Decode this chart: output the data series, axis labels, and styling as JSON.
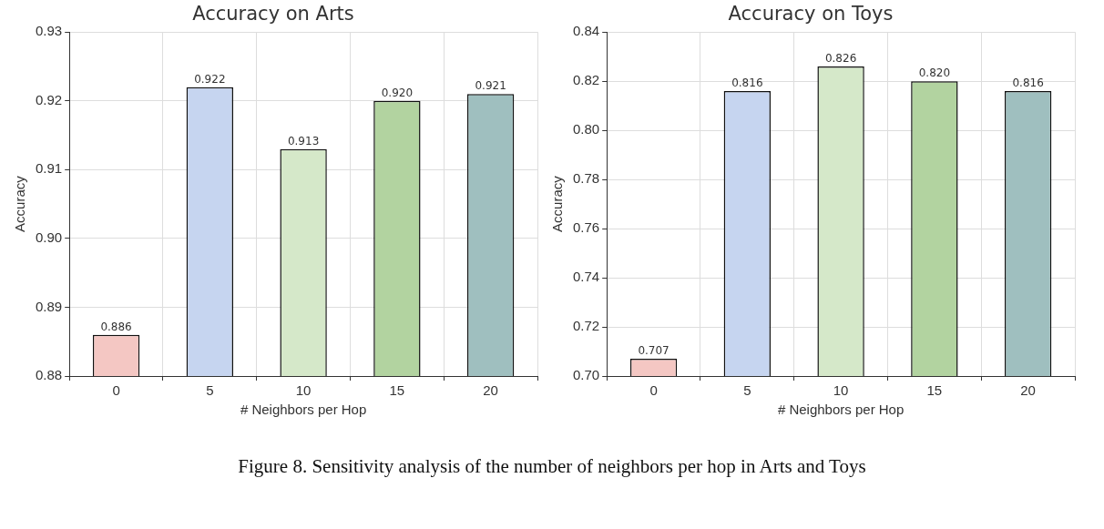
{
  "chart_data": [
    {
      "type": "bar",
      "title": "Accuracy on Arts",
      "xlabel": "# Neighbors per Hop",
      "ylabel": "Accuracy",
      "categories": [
        "0",
        "5",
        "10",
        "15",
        "20"
      ],
      "values": [
        0.886,
        0.922,
        0.913,
        0.92,
        0.921
      ],
      "colors": [
        "#f4c7c3",
        "#c6d5f0",
        "#d5e8c9",
        "#b2d3a0",
        "#9fbfbf"
      ],
      "ylim": [
        0.88,
        0.93
      ],
      "yticks": [
        {
          "value": 0.88,
          "label": "0.88"
        },
        {
          "value": 0.89,
          "label": "0.89"
        },
        {
          "value": 0.9,
          "label": "0.90"
        },
        {
          "value": 0.91,
          "label": "0.91"
        },
        {
          "value": 0.92,
          "label": "0.92"
        },
        {
          "value": 0.93,
          "label": "0.93"
        }
      ],
      "grid": true,
      "value_labels": [
        "0.886",
        "0.922",
        "0.913",
        "0.920",
        "0.921"
      ],
      "annotations": [
        "Figure 8. Sensitivity analysis of the number of neighbors per hop in Arts and Toys"
      ]
    },
    {
      "type": "bar",
      "title": "Accuracy on Toys",
      "xlabel": "# Neighbors per Hop",
      "ylabel": "Accuracy",
      "categories": [
        "0",
        "5",
        "10",
        "15",
        "20"
      ],
      "values": [
        0.707,
        0.816,
        0.826,
        0.82,
        0.816
      ],
      "colors": [
        "#f4c7c3",
        "#c6d5f0",
        "#d5e8c9",
        "#b2d3a0",
        "#9fbfbf"
      ],
      "ylim": [
        0.7,
        0.84
      ],
      "yticks": [
        {
          "value": 0.7,
          "label": "0.70"
        },
        {
          "value": 0.72,
          "label": "0.72"
        },
        {
          "value": 0.74,
          "label": "0.74"
        },
        {
          "value": 0.76,
          "label": "0.76"
        },
        {
          "value": 0.78,
          "label": "0.78"
        },
        {
          "value": 0.8,
          "label": "0.80"
        },
        {
          "value": 0.82,
          "label": "0.82"
        },
        {
          "value": 0.84,
          "label": "0.84"
        }
      ],
      "grid": true,
      "value_labels": [
        "0.707",
        "0.816",
        "0.826",
        "0.820",
        "0.816"
      ]
    }
  ]
}
